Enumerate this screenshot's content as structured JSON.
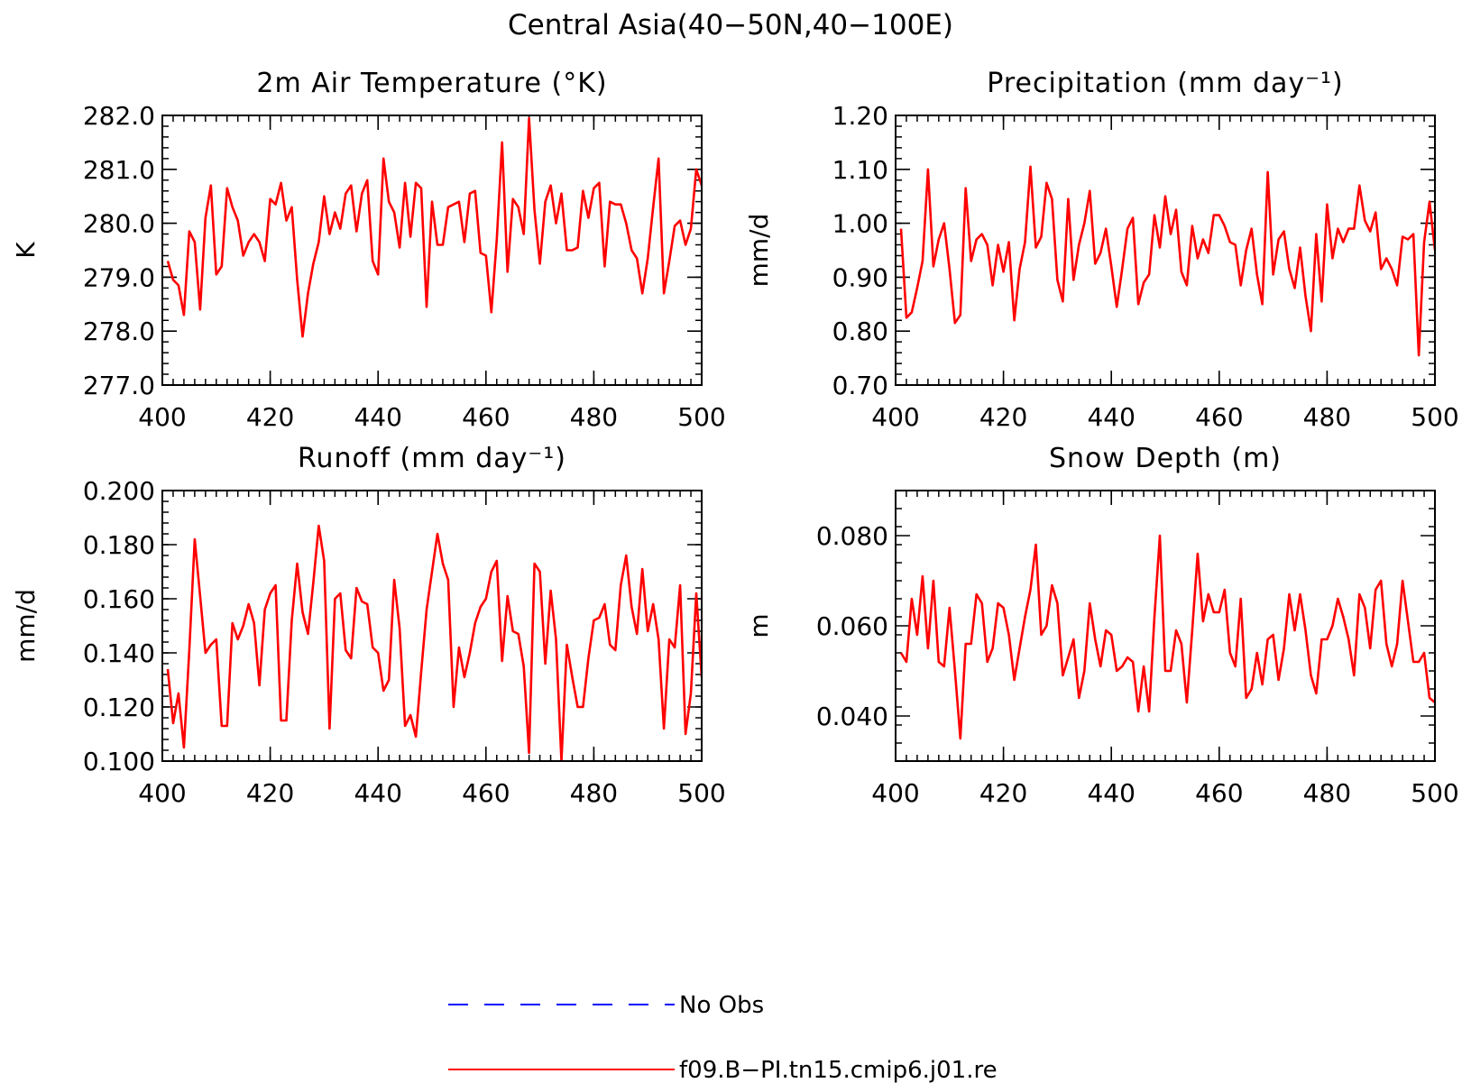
{
  "figure": {
    "title": "Central Asia(40−50N,40−100E)"
  },
  "colors": {
    "model": "#ff0000",
    "obs": "#0000ff",
    "axis": "#000000"
  },
  "legend": [
    {
      "label": "No Obs",
      "style": "dashed",
      "color": "#0000ff"
    },
    {
      "label": "f09.B−PI.tn15.cmip6.j01.re",
      "style": "solid",
      "color": "#ff0000"
    }
  ],
  "chart_data": [
    {
      "type": "line",
      "title": "2m Air Temperature (°K)",
      "ylabel": "K",
      "xlim": [
        400,
        500
      ],
      "ylim": [
        277.0,
        282.0
      ],
      "xticks": [
        400,
        420,
        440,
        460,
        480,
        500
      ],
      "yticks": [
        277.0,
        278.0,
        279.0,
        280.0,
        281.0,
        282.0
      ],
      "ytick_labels": [
        "277.0",
        "278.0",
        "279.0",
        "280.0",
        "281.0",
        "282.0"
      ],
      "x_start": 401,
      "x_step": 1,
      "series": [
        {
          "values": [
            279.3,
            278.95,
            278.85,
            278.3,
            279.85,
            279.65,
            278.4,
            280.1,
            280.7,
            279.05,
            279.2,
            280.65,
            280.3,
            280.05,
            279.4,
            279.65,
            279.8,
            279.65,
            279.3,
            280.45,
            280.35,
            280.75,
            280.05,
            280.3,
            278.95,
            277.9,
            278.7,
            279.25,
            279.65,
            280.5,
            279.8,
            280.2,
            279.9,
            280.55,
            280.7,
            279.85,
            280.55,
            280.8,
            279.3,
            279.05,
            281.2,
            280.4,
            280.2,
            279.55,
            280.75,
            279.75,
            280.75,
            280.65,
            278.45,
            280.4,
            279.6,
            279.6,
            280.3,
            280.35,
            280.4,
            279.65,
            280.55,
            280.6,
            279.45,
            279.4,
            278.35,
            279.7,
            281.5,
            279.1,
            280.45,
            280.3,
            279.8,
            281.95,
            280.25,
            279.25,
            280.4,
            280.7,
            280.0,
            280.55,
            279.5,
            279.5,
            279.55,
            280.6,
            280.1,
            280.65,
            280.75,
            279.2,
            280.4,
            280.35,
            280.35,
            280.0,
            279.5,
            279.35,
            278.7,
            279.35,
            280.3,
            281.2,
            278.7,
            279.3,
            279.95,
            280.05,
            279.6,
            279.9,
            281.0,
            280.7
          ]
        }
      ]
    },
    {
      "type": "line",
      "title": "Precipitation (mm day⁻¹)",
      "ylabel": "mm/d",
      "xlim": [
        400,
        500
      ],
      "ylim": [
        0.7,
        1.2
      ],
      "xticks": [
        400,
        420,
        440,
        460,
        480,
        500
      ],
      "yticks": [
        0.7,
        0.8,
        0.9,
        1.0,
        1.1,
        1.2
      ],
      "ytick_labels": [
        "0.70",
        "0.80",
        "0.90",
        "1.00",
        "1.10",
        "1.20"
      ],
      "x_start": 401,
      "x_step": 1,
      "series": [
        {
          "values": [
            0.99,
            0.825,
            0.835,
            0.88,
            0.93,
            1.1,
            0.92,
            0.97,
            1.0,
            0.915,
            0.815,
            0.83,
            1.065,
            0.93,
            0.97,
            0.98,
            0.96,
            0.885,
            0.96,
            0.91,
            0.965,
            0.82,
            0.915,
            0.965,
            1.105,
            0.955,
            0.975,
            1.075,
            1.045,
            0.895,
            0.855,
            1.045,
            0.895,
            0.96,
            1.0,
            1.06,
            0.925,
            0.945,
            0.99,
            0.92,
            0.845,
            0.915,
            0.99,
            1.01,
            0.85,
            0.89,
            0.905,
            1.015,
            0.955,
            1.05,
            0.98,
            1.025,
            0.91,
            0.885,
            0.995,
            0.935,
            0.97,
            0.945,
            1.015,
            1.015,
            0.995,
            0.965,
            0.96,
            0.885,
            0.95,
            0.99,
            0.905,
            0.85,
            1.095,
            0.905,
            0.97,
            0.985,
            0.915,
            0.88,
            0.955,
            0.865,
            0.8,
            0.98,
            0.855,
            1.035,
            0.935,
            0.99,
            0.965,
            0.99,
            0.99,
            1.07,
            1.005,
            0.985,
            1.02,
            0.915,
            0.935,
            0.915,
            0.885,
            0.975,
            0.97,
            0.98,
            0.755,
            0.965,
            1.04,
            0.95
          ]
        }
      ]
    },
    {
      "type": "line",
      "title": "Runoff (mm day⁻¹)",
      "ylabel": "mm/d",
      "xlim": [
        400,
        500
      ],
      "ylim": [
        0.1,
        0.2
      ],
      "xticks": [
        400,
        420,
        440,
        460,
        480,
        500
      ],
      "yticks": [
        0.1,
        0.12,
        0.14,
        0.16,
        0.18,
        0.2
      ],
      "ytick_labels": [
        "0.100",
        "0.120",
        "0.140",
        "0.160",
        "0.180",
        "0.200"
      ],
      "x_start": 401,
      "x_step": 1,
      "series": [
        {
          "values": [
            0.134,
            0.114,
            0.125,
            0.105,
            0.141,
            0.182,
            0.161,
            0.14,
            0.143,
            0.145,
            0.113,
            0.113,
            0.151,
            0.145,
            0.15,
            0.158,
            0.151,
            0.128,
            0.156,
            0.162,
            0.165,
            0.115,
            0.115,
            0.152,
            0.173,
            0.155,
            0.147,
            0.166,
            0.187,
            0.174,
            0.112,
            0.16,
            0.162,
            0.141,
            0.138,
            0.164,
            0.159,
            0.158,
            0.142,
            0.14,
            0.126,
            0.13,
            0.167,
            0.149,
            0.113,
            0.117,
            0.109,
            0.133,
            0.156,
            0.17,
            0.184,
            0.173,
            0.167,
            0.12,
            0.142,
            0.131,
            0.14,
            0.151,
            0.157,
            0.16,
            0.17,
            0.174,
            0.137,
            0.161,
            0.148,
            0.147,
            0.135,
            0.103,
            0.173,
            0.17,
            0.136,
            0.163,
            0.145,
            0.1,
            0.143,
            0.131,
            0.12,
            0.12,
            0.138,
            0.152,
            0.153,
            0.158,
            0.143,
            0.141,
            0.165,
            0.176,
            0.157,
            0.147,
            0.171,
            0.148,
            0.158,
            0.145,
            0.112,
            0.145,
            0.142,
            0.165,
            0.11,
            0.125,
            0.162,
            0.131
          ]
        }
      ]
    },
    {
      "type": "line",
      "title": "Snow Depth (m)",
      "ylabel": "m",
      "xlim": [
        400,
        500
      ],
      "ylim": [
        0.03,
        0.09
      ],
      "xticks": [
        400,
        420,
        440,
        460,
        480,
        500
      ],
      "yticks": [
        0.04,
        0.06,
        0.08
      ],
      "ytick_labels": [
        "0.040",
        "0.060",
        "0.080"
      ],
      "x_start": 401,
      "x_step": 1,
      "series": [
        {
          "values": [
            0.054,
            0.052,
            0.066,
            0.058,
            0.071,
            0.055,
            0.07,
            0.052,
            0.051,
            0.064,
            0.05,
            0.035,
            0.056,
            0.056,
            0.067,
            0.065,
            0.052,
            0.055,
            0.065,
            0.064,
            0.058,
            0.048,
            0.055,
            0.062,
            0.068,
            0.078,
            0.058,
            0.06,
            0.069,
            0.065,
            0.049,
            0.053,
            0.057,
            0.044,
            0.05,
            0.065,
            0.057,
            0.051,
            0.059,
            0.058,
            0.05,
            0.051,
            0.053,
            0.052,
            0.041,
            0.051,
            0.041,
            0.062,
            0.08,
            0.05,
            0.05,
            0.059,
            0.056,
            0.043,
            0.059,
            0.076,
            0.061,
            0.067,
            0.063,
            0.063,
            0.068,
            0.054,
            0.051,
            0.066,
            0.044,
            0.046,
            0.054,
            0.047,
            0.057,
            0.058,
            0.048,
            0.055,
            0.067,
            0.059,
            0.067,
            0.059,
            0.049,
            0.045,
            0.057,
            0.057,
            0.06,
            0.066,
            0.062,
            0.057,
            0.049,
            0.067,
            0.064,
            0.055,
            0.068,
            0.07,
            0.056,
            0.051,
            0.056,
            0.07,
            0.061,
            0.052,
            0.052,
            0.054,
            0.044,
            0.043
          ]
        }
      ]
    }
  ]
}
